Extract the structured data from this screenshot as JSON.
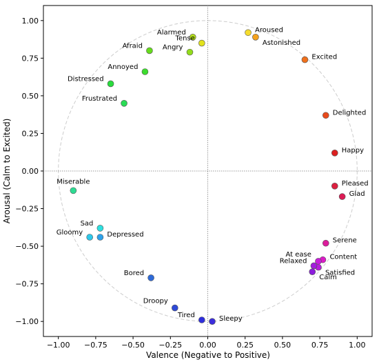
{
  "chart_data": {
    "type": "scatter",
    "title": "",
    "xlabel": "Valence (Negative to Positive)",
    "ylabel": "Arousal (Calm to Excited)",
    "xlim": [
      -1.1,
      1.1
    ],
    "ylim": [
      -1.1,
      1.1
    ],
    "xticks": [
      -1.0,
      -0.75,
      -0.5,
      -0.25,
      0.0,
      0.25,
      0.5,
      0.75,
      1.0
    ],
    "yticks": [
      -1.0,
      -0.75,
      -0.5,
      -0.25,
      0.0,
      0.25,
      0.5,
      0.75,
      1.0
    ],
    "xtick_labels": [
      "−1.00",
      "−0.75",
      "−0.50",
      "−0.25",
      "0.00",
      "0.25",
      "0.50",
      "0.75",
      "1.00"
    ],
    "ytick_labels": [
      "−1.00",
      "−0.75",
      "−0.50",
      "−0.25",
      "0.00",
      "0.25",
      "0.50",
      "0.75",
      "1.00"
    ],
    "grid": false,
    "reference_lines": {
      "x": 0,
      "y": 0,
      "style": "dotted",
      "color": "#999999"
    },
    "reference_circle": {
      "radius": 1.0,
      "style": "dashed",
      "color": "#cccccc"
    },
    "points": [
      {
        "label": "Alarmed",
        "x": -0.1,
        "y": 0.89,
        "color": "#b2dc1c",
        "label_pos": "left"
      },
      {
        "label": "Tense",
        "x": -0.04,
        "y": 0.85,
        "color": "#e2e21c",
        "label_pos": "left"
      },
      {
        "label": "Angry",
        "x": -0.12,
        "y": 0.79,
        "color": "#93dc1c",
        "label_pos": "left"
      },
      {
        "label": "Afraid",
        "x": -0.39,
        "y": 0.8,
        "color": "#66dc1c",
        "label_pos": "left"
      },
      {
        "label": "Aroused",
        "x": 0.27,
        "y": 0.92,
        "color": "#f5dc2e",
        "label_pos": "right"
      },
      {
        "label": "Astonished",
        "x": 0.32,
        "y": 0.89,
        "color": "#f5a21c",
        "label_pos": "right-below"
      },
      {
        "label": "Excited",
        "x": 0.65,
        "y": 0.74,
        "color": "#f0701c",
        "label_pos": "right"
      },
      {
        "label": "Annoyed",
        "x": -0.42,
        "y": 0.66,
        "color": "#3ddc2e",
        "label_pos": "left"
      },
      {
        "label": "Distressed",
        "x": -0.65,
        "y": 0.58,
        "color": "#2adc3d",
        "label_pos": "left"
      },
      {
        "label": "Frustrated",
        "x": -0.56,
        "y": 0.45,
        "color": "#2adc55",
        "label_pos": "left"
      },
      {
        "label": "Delighted",
        "x": 0.79,
        "y": 0.37,
        "color": "#e84a1c",
        "label_pos": "right"
      },
      {
        "label": "Happy",
        "x": 0.85,
        "y": 0.12,
        "color": "#dc2020",
        "label_pos": "right"
      },
      {
        "label": "Miserable",
        "x": -0.9,
        "y": -0.13,
        "color": "#2edc93",
        "label_pos": "above"
      },
      {
        "label": "Pleased",
        "x": 0.85,
        "y": -0.1,
        "color": "#dc2040",
        "label_pos": "right"
      },
      {
        "label": "Glad",
        "x": 0.9,
        "y": -0.17,
        "color": "#dc1c55",
        "label_pos": "right"
      },
      {
        "label": "Sad",
        "x": -0.72,
        "y": -0.38,
        "color": "#2ee0e0",
        "label_pos": "left"
      },
      {
        "label": "Depressed",
        "x": -0.72,
        "y": -0.44,
        "color": "#2ea2ea",
        "label_pos": "right"
      },
      {
        "label": "Gloomy",
        "x": -0.79,
        "y": -0.44,
        "color": "#2ec8ea",
        "label_pos": "left"
      },
      {
        "label": "Serene",
        "x": 0.79,
        "y": -0.48,
        "color": "#dc1c9c",
        "label_pos": "right"
      },
      {
        "label": "Content",
        "x": 0.77,
        "y": -0.59,
        "color": "#dc1cc8",
        "label_pos": "right"
      },
      {
        "label": "At ease",
        "x": 0.74,
        "y": -0.6,
        "color": "#c81cdc",
        "label_pos": "left-above"
      },
      {
        "label": "Satisfied",
        "x": 0.74,
        "y": -0.64,
        "color": "#b81cdc",
        "label_pos": "right-below"
      },
      {
        "label": "Relaxed",
        "x": 0.71,
        "y": -0.63,
        "color": "#a21cdc",
        "label_pos": "left"
      },
      {
        "label": "Calm",
        "x": 0.7,
        "y": -0.67,
        "color": "#8c1cdc",
        "label_pos": "right-below"
      },
      {
        "label": "Bored",
        "x": -0.38,
        "y": -0.71,
        "color": "#2e6ad8",
        "label_pos": "left"
      },
      {
        "label": "Droopy",
        "x": -0.22,
        "y": -0.91,
        "color": "#2e4ad8",
        "label_pos": "left-above"
      },
      {
        "label": "Tired",
        "x": -0.04,
        "y": -0.99,
        "color": "#2e2edc",
        "label_pos": "left"
      },
      {
        "label": "Sleepy",
        "x": 0.03,
        "y": -1.0,
        "color": "#3c2edc",
        "label_pos": "right"
      }
    ]
  }
}
